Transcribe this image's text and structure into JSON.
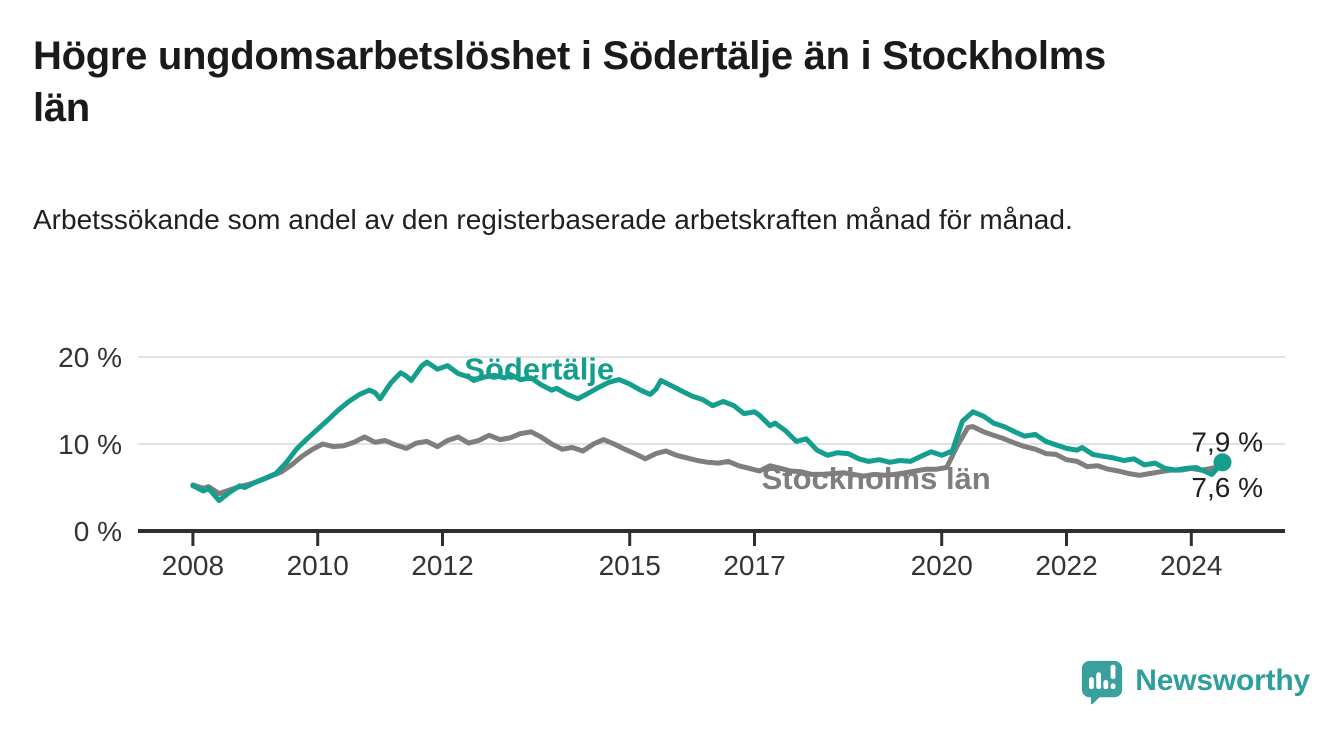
{
  "header": {
    "title": "Högre ungdomsarbetslöshet i Södertälje än i Stockholms län",
    "subtitle": "Arbetssökande som andel av den registerbaserade arbetskraften månad för månad."
  },
  "branding": {
    "name": "Newsworthy",
    "logo_icon": "newsworthy-speech-bubble-bar-chart-icon",
    "logo_color": "#3AA09E"
  },
  "chart_data": {
    "type": "line",
    "title": "Högre ungdomsarbetslöshet i Södertälje än i Stockholms län",
    "subtitle": "Arbetssökande som andel av den registerbaserade arbetskraften månad för månad.",
    "x_unit": "year, monthly observations",
    "y_unit": "percent of register-based labour force",
    "xlim": [
      2007.1,
      2025.5
    ],
    "ylim": [
      0,
      22
    ],
    "grid": "horizontal",
    "axis_color": "#2f2f2f",
    "grid_color": "#d9d9d9",
    "y_ticks": [
      {
        "value": 20,
        "label": "20 %"
      },
      {
        "value": 10,
        "label": "10 %"
      },
      {
        "value": 0,
        "label": "0 %"
      }
    ],
    "x_ticks": [
      {
        "value": 2008,
        "label": "2008"
      },
      {
        "value": 2010,
        "label": "2010"
      },
      {
        "value": 2012,
        "label": "2012"
      },
      {
        "value": 2015,
        "label": "2015"
      },
      {
        "value": 2017,
        "label": "2017"
      },
      {
        "value": 2020,
        "label": "2020"
      },
      {
        "value": 2022,
        "label": "2022"
      },
      {
        "value": 2024,
        "label": "2024"
      }
    ],
    "series": [
      {
        "name": "Södertälje",
        "slug": "sodertalje",
        "color": "#149e8e",
        "end_label": "7,9 %",
        "end_dot": true,
        "label_pos": [
          2013.55,
          18.7
        ],
        "points": [
          [
            2008.0,
            5.2
          ],
          [
            2008.17,
            4.6
          ],
          [
            2008.25,
            4.9
          ],
          [
            2008.42,
            3.5
          ],
          [
            2008.58,
            4.4
          ],
          [
            2008.75,
            5.2
          ],
          [
            2008.83,
            5.0
          ],
          [
            2009.0,
            5.6
          ],
          [
            2009.17,
            6.1
          ],
          [
            2009.33,
            6.6
          ],
          [
            2009.5,
            7.9
          ],
          [
            2009.67,
            9.5
          ],
          [
            2009.83,
            10.6
          ],
          [
            2010.0,
            11.7
          ],
          [
            2010.17,
            12.8
          ],
          [
            2010.33,
            13.9
          ],
          [
            2010.5,
            14.9
          ],
          [
            2010.67,
            15.7
          ],
          [
            2010.83,
            16.2
          ],
          [
            2010.92,
            15.9
          ],
          [
            2011.0,
            15.2
          ],
          [
            2011.17,
            17.0
          ],
          [
            2011.33,
            18.2
          ],
          [
            2011.42,
            17.8
          ],
          [
            2011.5,
            17.3
          ],
          [
            2011.67,
            19.0
          ],
          [
            2011.75,
            19.4
          ],
          [
            2011.92,
            18.6
          ],
          [
            2012.08,
            19.0
          ],
          [
            2012.25,
            18.1
          ],
          [
            2012.42,
            17.7
          ],
          [
            2012.5,
            17.3
          ],
          [
            2012.67,
            17.7
          ],
          [
            2012.83,
            17.9
          ],
          [
            2013.0,
            17.6
          ],
          [
            2013.08,
            18.0
          ],
          [
            2013.25,
            17.4
          ],
          [
            2013.42,
            17.6
          ],
          [
            2013.58,
            16.8
          ],
          [
            2013.75,
            16.2
          ],
          [
            2013.83,
            16.4
          ],
          [
            2014.0,
            15.7
          ],
          [
            2014.17,
            15.2
          ],
          [
            2014.33,
            15.8
          ],
          [
            2014.5,
            16.5
          ],
          [
            2014.67,
            17.1
          ],
          [
            2014.83,
            17.4
          ],
          [
            2015.0,
            16.9
          ],
          [
            2015.17,
            16.2
          ],
          [
            2015.33,
            15.7
          ],
          [
            2015.42,
            16.3
          ],
          [
            2015.5,
            17.3
          ],
          [
            2015.67,
            16.7
          ],
          [
            2015.83,
            16.1
          ],
          [
            2016.0,
            15.5
          ],
          [
            2016.17,
            15.1
          ],
          [
            2016.33,
            14.4
          ],
          [
            2016.5,
            14.9
          ],
          [
            2016.67,
            14.4
          ],
          [
            2016.83,
            13.5
          ],
          [
            2017.0,
            13.7
          ],
          [
            2017.08,
            13.3
          ],
          [
            2017.25,
            12.1
          ],
          [
            2017.33,
            12.4
          ],
          [
            2017.5,
            11.5
          ],
          [
            2017.67,
            10.3
          ],
          [
            2017.83,
            10.6
          ],
          [
            2018.0,
            9.3
          ],
          [
            2018.17,
            8.7
          ],
          [
            2018.33,
            9.0
          ],
          [
            2018.5,
            8.9
          ],
          [
            2018.67,
            8.3
          ],
          [
            2018.83,
            8.0
          ],
          [
            2019.0,
            8.2
          ],
          [
            2019.17,
            7.9
          ],
          [
            2019.33,
            8.1
          ],
          [
            2019.5,
            8.0
          ],
          [
            2019.67,
            8.6
          ],
          [
            2019.83,
            9.1
          ],
          [
            2020.0,
            8.7
          ],
          [
            2020.17,
            9.2
          ],
          [
            2020.33,
            12.6
          ],
          [
            2020.5,
            13.7
          ],
          [
            2020.67,
            13.2
          ],
          [
            2020.83,
            12.4
          ],
          [
            2021.0,
            12.0
          ],
          [
            2021.17,
            11.4
          ],
          [
            2021.33,
            10.9
          ],
          [
            2021.5,
            11.1
          ],
          [
            2021.67,
            10.3
          ],
          [
            2021.83,
            9.9
          ],
          [
            2022.0,
            9.5
          ],
          [
            2022.17,
            9.3
          ],
          [
            2022.25,
            9.6
          ],
          [
            2022.42,
            8.8
          ],
          [
            2022.58,
            8.6
          ],
          [
            2022.75,
            8.4
          ],
          [
            2022.92,
            8.1
          ],
          [
            2023.08,
            8.3
          ],
          [
            2023.25,
            7.6
          ],
          [
            2023.42,
            7.8
          ],
          [
            2023.58,
            7.2
          ],
          [
            2023.75,
            7.0
          ],
          [
            2023.92,
            7.2
          ],
          [
            2024.08,
            7.3
          ],
          [
            2024.17,
            7.0
          ],
          [
            2024.33,
            6.5
          ],
          [
            2024.5,
            7.9
          ]
        ]
      },
      {
        "name": "Stockholms län",
        "slug": "stockholms-lan",
        "color": "#7e7e7e",
        "end_label": "7,6 %",
        "end_dot": false,
        "label_pos": [
          2018.95,
          6.1
        ],
        "points": [
          [
            2008.0,
            5.3
          ],
          [
            2008.17,
            4.9
          ],
          [
            2008.25,
            5.1
          ],
          [
            2008.42,
            4.3
          ],
          [
            2008.58,
            4.7
          ],
          [
            2008.75,
            5.1
          ],
          [
            2008.92,
            5.4
          ],
          [
            2009.08,
            5.8
          ],
          [
            2009.25,
            6.3
          ],
          [
            2009.42,
            6.8
          ],
          [
            2009.58,
            7.6
          ],
          [
            2009.75,
            8.6
          ],
          [
            2009.92,
            9.4
          ],
          [
            2010.08,
            10.0
          ],
          [
            2010.25,
            9.7
          ],
          [
            2010.42,
            9.8
          ],
          [
            2010.58,
            10.2
          ],
          [
            2010.75,
            10.8
          ],
          [
            2010.92,
            10.2
          ],
          [
            2011.08,
            10.4
          ],
          [
            2011.25,
            9.9
          ],
          [
            2011.42,
            9.5
          ],
          [
            2011.58,
            10.1
          ],
          [
            2011.75,
            10.3
          ],
          [
            2011.92,
            9.7
          ],
          [
            2012.08,
            10.4
          ],
          [
            2012.25,
            10.8
          ],
          [
            2012.42,
            10.1
          ],
          [
            2012.58,
            10.4
          ],
          [
            2012.75,
            11.0
          ],
          [
            2012.92,
            10.5
          ],
          [
            2013.08,
            10.7
          ],
          [
            2013.25,
            11.2
          ],
          [
            2013.42,
            11.4
          ],
          [
            2013.58,
            10.8
          ],
          [
            2013.75,
            10.0
          ],
          [
            2013.92,
            9.4
          ],
          [
            2014.08,
            9.6
          ],
          [
            2014.25,
            9.2
          ],
          [
            2014.42,
            10.0
          ],
          [
            2014.58,
            10.5
          ],
          [
            2014.75,
            10.0
          ],
          [
            2014.92,
            9.4
          ],
          [
            2015.08,
            8.9
          ],
          [
            2015.25,
            8.3
          ],
          [
            2015.42,
            8.9
          ],
          [
            2015.58,
            9.2
          ],
          [
            2015.75,
            8.7
          ],
          [
            2015.92,
            8.4
          ],
          [
            2016.08,
            8.1
          ],
          [
            2016.25,
            7.9
          ],
          [
            2016.42,
            7.8
          ],
          [
            2016.58,
            8.0
          ],
          [
            2016.75,
            7.5
          ],
          [
            2016.92,
            7.2
          ],
          [
            2017.08,
            6.9
          ],
          [
            2017.25,
            7.5
          ],
          [
            2017.42,
            7.2
          ],
          [
            2017.58,
            6.9
          ],
          [
            2017.75,
            6.8
          ],
          [
            2017.92,
            6.5
          ],
          [
            2018.08,
            6.5
          ],
          [
            2018.25,
            6.6
          ],
          [
            2018.42,
            6.7
          ],
          [
            2018.58,
            6.5
          ],
          [
            2018.75,
            6.3
          ],
          [
            2018.92,
            6.5
          ],
          [
            2019.08,
            6.4
          ],
          [
            2019.25,
            6.5
          ],
          [
            2019.42,
            6.7
          ],
          [
            2019.58,
            6.9
          ],
          [
            2019.75,
            7.1
          ],
          [
            2019.92,
            7.1
          ],
          [
            2020.08,
            7.3
          ],
          [
            2020.25,
            9.8
          ],
          [
            2020.42,
            11.9
          ],
          [
            2020.5,
            12.0
          ],
          [
            2020.67,
            11.4
          ],
          [
            2020.83,
            11.0
          ],
          [
            2021.0,
            10.6
          ],
          [
            2021.17,
            10.1
          ],
          [
            2021.33,
            9.7
          ],
          [
            2021.5,
            9.4
          ],
          [
            2021.67,
            8.9
          ],
          [
            2021.83,
            8.8
          ],
          [
            2022.0,
            8.2
          ],
          [
            2022.17,
            8.0
          ],
          [
            2022.33,
            7.4
          ],
          [
            2022.5,
            7.5
          ],
          [
            2022.67,
            7.1
          ],
          [
            2022.83,
            6.9
          ],
          [
            2023.0,
            6.6
          ],
          [
            2023.17,
            6.4
          ],
          [
            2023.33,
            6.6
          ],
          [
            2023.5,
            6.8
          ],
          [
            2023.67,
            7.0
          ],
          [
            2023.83,
            7.0
          ],
          [
            2024.0,
            7.2
          ],
          [
            2024.17,
            7.0
          ],
          [
            2024.33,
            7.2
          ],
          [
            2024.5,
            7.6
          ]
        ]
      }
    ]
  }
}
